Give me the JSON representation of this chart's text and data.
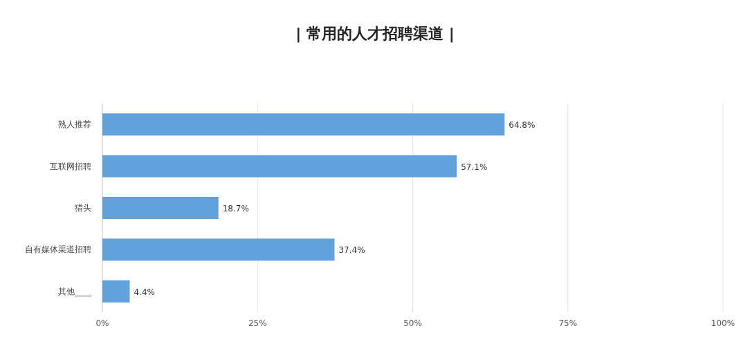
{
  "chart_data": {
    "type": "bar",
    "orientation": "horizontal",
    "title": "| 常用的人才招聘渠道 |",
    "categories": [
      "熟人推荐",
      "互联网招聘",
      "猎头",
      "自有媒体渠道招聘",
      "其他____"
    ],
    "values": [
      64.8,
      57.1,
      18.7,
      37.4,
      4.4
    ],
    "value_labels": [
      "64.8%",
      "57.1%",
      "18.7%",
      "37.4%",
      "4.4%"
    ],
    "color": "#62a2dc",
    "xlim": [
      0,
      100
    ],
    "xticks": [
      {
        "value": 0,
        "label": "0%"
      },
      {
        "value": 25,
        "label": "25%"
      },
      {
        "value": 50,
        "label": "50%"
      },
      {
        "value": 75,
        "label": "75%"
      },
      {
        "value": 100,
        "label": "100%"
      }
    ],
    "grid": "x"
  }
}
